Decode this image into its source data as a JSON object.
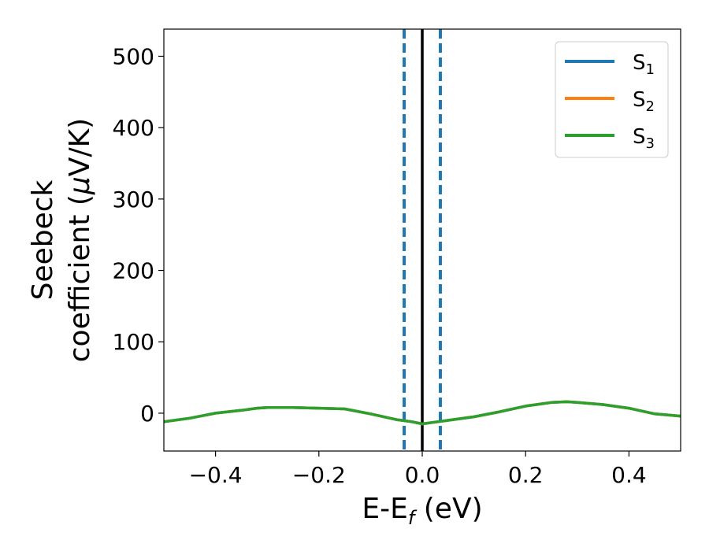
{
  "chart_data": {
    "type": "line",
    "title": "",
    "xlabel": {
      "main": "E-E",
      "sub": "f",
      "suffix": " (eV)"
    },
    "ylabel": {
      "line1": "Seebeck",
      "line2_prefix": "coefficient  (",
      "mu": "μ",
      "line2_suffix": "V/K)"
    },
    "xlim": [
      -0.5,
      0.5
    ],
    "ylim": [
      -53,
      538
    ],
    "xticks": [
      -0.4,
      -0.2,
      0.0,
      0.2,
      0.4
    ],
    "xtick_labels": [
      "−0.4",
      "−0.2",
      "0.0",
      "0.2",
      "0.4"
    ],
    "yticks": [
      0,
      100,
      200,
      300,
      400,
      500
    ],
    "ytick_labels": [
      "0",
      "100",
      "200",
      "300",
      "400",
      "500"
    ],
    "grid": false,
    "legend_position": "top-right",
    "x": [
      -0.5,
      -0.45,
      -0.4,
      -0.35,
      -0.32,
      -0.3,
      -0.25,
      -0.2,
      -0.15,
      -0.1,
      -0.05,
      -0.02,
      0.0,
      0.02,
      0.05,
      0.1,
      0.15,
      0.2,
      0.25,
      0.28,
      0.3,
      0.35,
      0.4,
      0.45,
      0.5
    ],
    "series": [
      {
        "name": "S",
        "subscript": "1",
        "color": "#1f77b4",
        "values": [
          -12,
          -7,
          0,
          4,
          7,
          8,
          8,
          7,
          6,
          -1,
          -9,
          -12,
          -15,
          -13,
          -10,
          -5,
          2,
          10,
          15,
          16,
          15,
          12,
          7,
          -1,
          -4
        ]
      },
      {
        "name": "S",
        "subscript": "2",
        "color": "#ff7f0e",
        "values": [
          -12,
          -7,
          0,
          4,
          7,
          8,
          8,
          7,
          6,
          -1,
          -9,
          -12,
          -15,
          -13,
          -10,
          -5,
          2,
          10,
          15,
          16,
          15,
          12,
          7,
          -1,
          -4
        ]
      },
      {
        "name": "S",
        "subscript": "3",
        "color": "#2ca02c",
        "values": [
          -12,
          -7,
          0,
          4,
          7,
          8,
          8,
          7,
          6,
          -1,
          -9,
          -12,
          -15,
          -13,
          -10,
          -5,
          2,
          10,
          15,
          16,
          15,
          12,
          7,
          -1,
          -4
        ]
      }
    ],
    "vertical_lines": [
      {
        "x": -0.035,
        "color": "#1f77b4",
        "style": "dashed"
      },
      {
        "x": 0.0,
        "color": "#000000",
        "style": "solid"
      },
      {
        "x": 0.035,
        "color": "#1f77b4",
        "style": "dashed"
      }
    ]
  }
}
